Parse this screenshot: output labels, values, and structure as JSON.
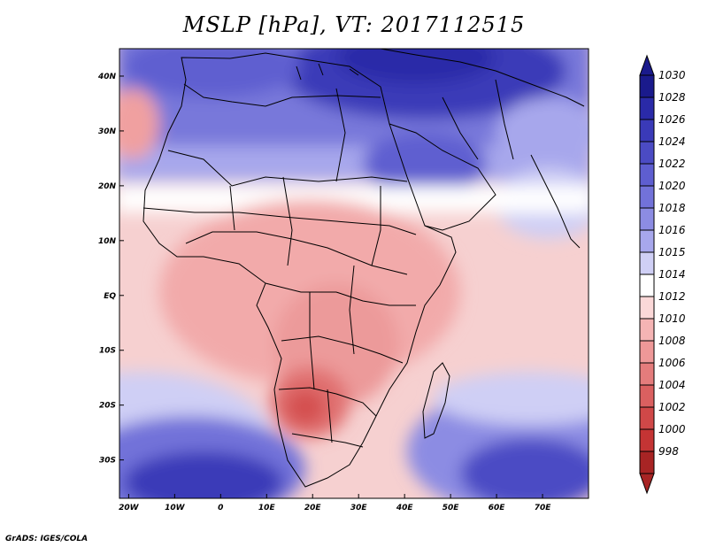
{
  "title": "MSLP [hPa], VT: 2017112515",
  "credit": "GrADS: IGES/COLA",
  "map": {
    "lat_ticks": [
      {
        "lat": 40,
        "label": "40N"
      },
      {
        "lat": 30,
        "label": "30N"
      },
      {
        "lat": 20,
        "label": "20N"
      },
      {
        "lat": 10,
        "label": "10N"
      },
      {
        "lat": 0,
        "label": "EQ"
      },
      {
        "lat": -10,
        "label": "10S"
      },
      {
        "lat": -20,
        "label": "20S"
      },
      {
        "lat": -30,
        "label": "30S"
      }
    ],
    "lon_ticks": [
      {
        "lon": -20,
        "label": "20W"
      },
      {
        "lon": -10,
        "label": "10W"
      },
      {
        "lon": 0,
        "label": "0"
      },
      {
        "lon": 10,
        "label": "10E"
      },
      {
        "lon": 20,
        "label": "20E"
      },
      {
        "lon": 30,
        "label": "30E"
      },
      {
        "lon": 40,
        "label": "40E"
      },
      {
        "lon": 50,
        "label": "50E"
      },
      {
        "lon": 60,
        "label": "60E"
      },
      {
        "lon": 70,
        "label": "70E"
      }
    ],
    "lon_range": [
      -22,
      80
    ],
    "lat_range": [
      -37,
      45
    ]
  },
  "colorbar": {
    "levels": [
      {
        "label": "1030",
        "color": "#1a1a8c"
      },
      {
        "label": "1028",
        "color": "#2a2aa8"
      },
      {
        "label": "1026",
        "color": "#3a3ab8"
      },
      {
        "label": "1024",
        "color": "#4b4bc4"
      },
      {
        "label": "1022",
        "color": "#5e5ed0"
      },
      {
        "label": "1020",
        "color": "#7272d9"
      },
      {
        "label": "1018",
        "color": "#8c8ce3"
      },
      {
        "label": "1016",
        "color": "#a7a7ec"
      },
      {
        "label": "1015",
        "color": "#cfcff5"
      },
      {
        "label": "1014",
        "color": "#ffffff"
      },
      {
        "label": "1012",
        "color": "#fbd8d8"
      },
      {
        "label": "1010",
        "color": "#f5b4b4"
      },
      {
        "label": "1008",
        "color": "#ee9898"
      },
      {
        "label": "1006",
        "color": "#e47c7c"
      },
      {
        "label": "1004",
        "color": "#da6060"
      },
      {
        "label": "1002",
        "color": "#d04848"
      },
      {
        "label": "1000",
        "color": "#c43434"
      },
      {
        "label": "998",
        "color": "#a82424"
      }
    ]
  }
}
